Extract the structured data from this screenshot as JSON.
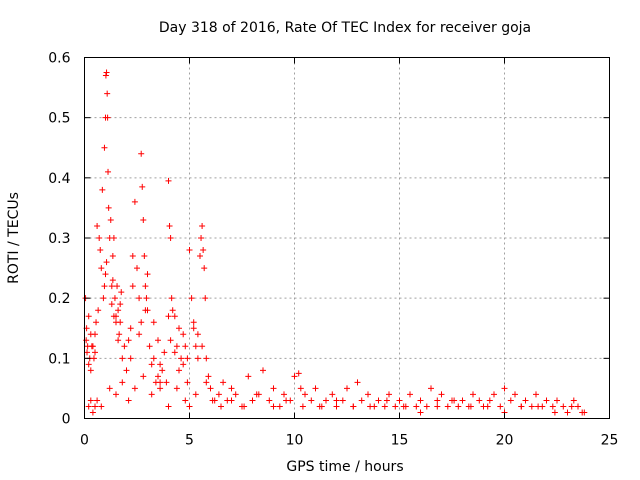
{
  "chart_data": {
    "type": "scatter",
    "title": "Day 318 of 2016, Rate Of TEC Index for receiver goja",
    "xlabel": "GPS time / hours",
    "ylabel": "ROTI / TECUs",
    "xlim": [
      0,
      25
    ],
    "ylim": [
      0,
      0.6
    ],
    "xticks": [
      0,
      5,
      10,
      15,
      20,
      25
    ],
    "xtick_labels": [
      "0",
      "5",
      "10",
      "15",
      "20",
      "25"
    ],
    "yticks": [
      0,
      0.1,
      0.2,
      0.3,
      0.4,
      0.5,
      0.6
    ],
    "ytick_labels": [
      "0",
      "0.1",
      "0.2",
      "0.3",
      "0.4",
      "0.5",
      "0.6"
    ],
    "grid": true,
    "marker": "plus",
    "color": "#ff0000",
    "series": [
      {
        "name": "ROTI",
        "x": [
          0.05,
          0.1,
          0.15,
          0.2,
          0.25,
          0.3,
          0.4,
          0.5,
          0.55,
          0.6,
          0.7,
          0.75,
          0.8,
          0.85,
          0.95,
          1.0,
          1.02,
          1.05,
          1.08,
          1.1,
          1.12,
          1.15,
          1.2,
          1.25,
          1.3,
          1.35,
          1.4,
          1.45,
          1.5,
          1.55,
          1.6,
          1.65,
          1.7,
          1.75,
          1.8,
          1.9,
          2.0,
          2.1,
          2.2,
          2.3,
          2.4,
          2.5,
          2.6,
          2.7,
          2.75,
          2.8,
          2.85,
          2.9,
          2.95,
          3.0,
          3.1,
          3.2,
          3.3,
          3.4,
          3.5,
          3.6,
          3.7,
          3.8,
          3.9,
          4.0,
          4.05,
          4.1,
          4.15,
          4.2,
          4.3,
          4.4,
          4.5,
          4.6,
          4.7,
          4.8,
          4.9,
          5.0,
          5.1,
          5.2,
          5.3,
          5.4,
          5.5,
          5.55,
          5.6,
          5.65,
          5.7,
          5.75,
          5.8,
          5.9,
          6.0,
          6.2,
          6.4,
          6.6,
          6.8,
          7.0,
          7.2,
          7.5,
          7.8,
          8.0,
          8.3,
          8.5,
          8.8,
          9.0,
          9.3,
          9.5,
          9.8,
          10.0,
          10.2,
          10.3,
          10.5,
          10.8,
          11.0,
          11.3,
          11.5,
          11.8,
          12.0,
          12.3,
          12.5,
          12.8,
          13.0,
          13.2,
          13.5,
          13.8,
          14.0,
          14.3,
          14.5,
          14.8,
          15.0,
          15.3,
          15.5,
          15.8,
          16.0,
          16.3,
          16.5,
          16.8,
          17.0,
          17.3,
          17.5,
          17.8,
          18.0,
          18.3,
          18.5,
          18.8,
          19.0,
          19.3,
          19.5,
          19.8,
          20.0,
          20.3,
          20.5,
          20.8,
          21.0,
          21.3,
          21.5,
          21.8,
          22.0,
          22.3,
          22.5,
          22.8,
          23.0,
          23.3,
          23.5,
          23.8,
          0.08,
          0.12,
          0.2,
          0.3,
          0.35,
          0.45,
          0.5,
          0.65,
          0.9,
          0.95,
          1.0,
          1.05,
          1.3,
          1.35,
          1.4,
          1.5,
          1.6,
          1.7,
          2.2,
          2.3,
          2.6,
          2.7,
          2.9,
          3.0,
          3.3,
          3.5,
          3.6,
          4.0,
          4.1,
          4.3,
          4.5,
          4.7,
          4.9,
          5.2,
          5.4,
          5.6,
          0.2,
          0.3,
          0.4,
          0.5,
          0.6,
          0.8,
          1.2,
          1.5,
          1.8,
          2.1,
          2.4,
          2.8,
          3.2,
          3.6,
          4.0,
          4.4,
          4.8,
          5.0,
          5.3,
          5.8,
          6.1,
          6.5,
          7.0,
          7.6,
          8.2,
          9.0,
          9.6,
          10.4,
          11.2,
          12.0,
          12.8,
          13.6,
          14.4,
          15.2,
          16.0,
          16.8,
          17.6,
          18.4,
          19.2,
          20.0,
          20.8,
          21.6,
          22.4,
          23.2,
          23.7
        ],
        "y": [
          0.2,
          0.15,
          0.12,
          0.17,
          0.1,
          0.08,
          0.12,
          0.14,
          0.16,
          0.32,
          0.3,
          0.28,
          0.25,
          0.38,
          0.45,
          0.5,
          0.57,
          0.575,
          0.54,
          0.5,
          0.41,
          0.35,
          0.3,
          0.33,
          0.22,
          0.27,
          0.3,
          0.2,
          0.17,
          0.22,
          0.18,
          0.14,
          0.16,
          0.21,
          0.1,
          0.12,
          0.08,
          0.13,
          0.1,
          0.27,
          0.36,
          0.25,
          0.2,
          0.44,
          0.385,
          0.33,
          0.27,
          0.22,
          0.2,
          0.18,
          0.12,
          0.09,
          0.1,
          0.06,
          0.07,
          0.05,
          0.08,
          0.11,
          0.06,
          0.395,
          0.32,
          0.3,
          0.2,
          0.18,
          0.17,
          0.12,
          0.15,
          0.1,
          0.14,
          0.12,
          0.1,
          0.28,
          0.2,
          0.15,
          0.12,
          0.1,
          0.27,
          0.3,
          0.32,
          0.28,
          0.25,
          0.2,
          0.1,
          0.07,
          0.05,
          0.03,
          0.04,
          0.06,
          0.03,
          0.05,
          0.04,
          0.02,
          0.07,
          0.03,
          0.04,
          0.08,
          0.03,
          0.05,
          0.02,
          0.04,
          0.03,
          0.07,
          0.075,
          0.05,
          0.04,
          0.03,
          0.05,
          0.02,
          0.03,
          0.04,
          0.02,
          0.03,
          0.05,
          0.02,
          0.06,
          0.03,
          0.04,
          0.02,
          0.03,
          0.02,
          0.04,
          0.02,
          0.03,
          0.02,
          0.04,
          0.02,
          0.03,
          0.02,
          0.05,
          0.03,
          0.04,
          0.02,
          0.03,
          0.02,
          0.03,
          0.02,
          0.04,
          0.03,
          0.02,
          0.03,
          0.04,
          0.02,
          0.05,
          0.03,
          0.04,
          0.02,
          0.03,
          0.02,
          0.04,
          0.02,
          0.03,
          0.02,
          0.03,
          0.02,
          0.01,
          0.03,
          0.02,
          0.01,
          0.13,
          0.11,
          0.09,
          0.14,
          0.12,
          0.1,
          0.11,
          0.18,
          0.2,
          0.22,
          0.24,
          0.26,
          0.19,
          0.23,
          0.17,
          0.16,
          0.13,
          0.19,
          0.15,
          0.22,
          0.14,
          0.16,
          0.18,
          0.24,
          0.16,
          0.13,
          0.09,
          0.17,
          0.13,
          0.11,
          0.08,
          0.09,
          0.06,
          0.16,
          0.14,
          0.12,
          0.02,
          0.03,
          0.01,
          0.02,
          0.03,
          0.02,
          0.05,
          0.04,
          0.06,
          0.03,
          0.05,
          0.07,
          0.04,
          0.06,
          0.02,
          0.05,
          0.03,
          0.02,
          0.04,
          0.06,
          0.03,
          0.02,
          0.03,
          0.02,
          0.04,
          0.02,
          0.03,
          0.02,
          0.02,
          0.03,
          0.02,
          0.02,
          0.03,
          0.02,
          0.01,
          0.02,
          0.03,
          0.02,
          0.02,
          0.01,
          0.02,
          0.02,
          0.01,
          0.02,
          0.01
        ]
      }
    ]
  }
}
